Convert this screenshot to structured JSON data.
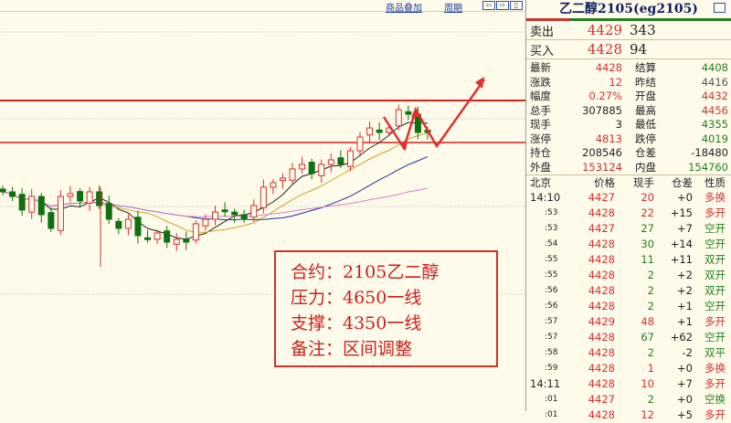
{
  "toolbar": {
    "add_product": "商品叠加",
    "period": "周期",
    "nav_left": "⇦",
    "nav_right": "⇨",
    "nav_split": "▯"
  },
  "chart": {
    "pressure_level": 4650,
    "support_level": 4350,
    "up_color": "#d03030",
    "down_color": "#107010",
    "ma_colors": [
      "#202020",
      "#d0a020",
      "#2030a0",
      "#d080d0"
    ],
    "closes": [
      3998,
      3965,
      3868,
      3965,
      3835,
      3737,
      3965,
      3985,
      3933,
      3998,
      3900,
      3802,
      3737,
      3802,
      3685,
      3659,
      3704,
      3639,
      3659,
      3639,
      3770,
      3802,
      3854,
      3868,
      3835,
      3802,
      3900,
      4031,
      4063,
      4096,
      4161,
      4194,
      4128,
      4194,
      4226,
      4194,
      4291,
      4389,
      4454,
      4422,
      4454,
      4585,
      4552,
      4422,
      4428
    ]
  },
  "note": {
    "lines": [
      "合约：2105乙二醇",
      "压力：4650一线",
      "支撑：4350一线",
      "备注：区间调整"
    ]
  },
  "panel": {
    "title": "乙二醇2105(eg2105)",
    "sell": {
      "label": "卖出",
      "price": "4429",
      "volume": "343"
    },
    "buy": {
      "label": "买入",
      "price": "4428",
      "volume": "94"
    },
    "stats": [
      {
        "k": "最新",
        "a": "4428",
        "ac": "red",
        "k2": "结算",
        "b": "4408",
        "bc": "green"
      },
      {
        "k": "涨跌",
        "a": "12",
        "ac": "red",
        "k2": "昨结",
        "b": "4416",
        "bc": "gray"
      },
      {
        "k": "幅度",
        "a": "0.27%",
        "ac": "red",
        "k2": "开盘",
        "b": "4432",
        "bc": "red"
      },
      {
        "k": "总手",
        "a": "307885",
        "ac": "blk",
        "k2": "最高",
        "b": "4456",
        "bc": "red"
      },
      {
        "k": "现手",
        "a": "3",
        "ac": "blk",
        "k2": "最低",
        "b": "4355",
        "bc": "green"
      },
      {
        "k": "涨停",
        "a": "4813",
        "ac": "red",
        "k2": "跌停",
        "b": "4019",
        "bc": "green"
      },
      {
        "k": "持仓",
        "a": "208546",
        "ac": "blk",
        "k2": "仓差",
        "b": "-18480",
        "bc": "blk"
      },
      {
        "k": "外盘",
        "a": "153124",
        "ac": "red",
        "k2": "内盘",
        "b": "154760",
        "bc": "green"
      }
    ],
    "ticks_header": [
      "北京",
      "价格",
      "现手",
      "仓差",
      "性质"
    ],
    "ticks": [
      {
        "t": "14:10",
        "p": "4427",
        "v": "20",
        "vc": "red",
        "d": "+0",
        "n": "多换",
        "nc": "red"
      },
      {
        "t": ":53",
        "p": "4428",
        "v": "22",
        "vc": "red",
        "d": "+15",
        "n": "多开",
        "nc": "red"
      },
      {
        "t": ":53",
        "p": "4427",
        "v": "27",
        "vc": "green",
        "d": "+7",
        "n": "空开",
        "nc": "green"
      },
      {
        "t": ":54",
        "p": "4428",
        "v": "30",
        "vc": "green",
        "d": "+14",
        "n": "空开",
        "nc": "green"
      },
      {
        "t": ":55",
        "p": "4428",
        "v": "11",
        "vc": "green",
        "d": "+11",
        "n": "双开",
        "nc": "green"
      },
      {
        "t": ":55",
        "p": "4428",
        "v": "2",
        "vc": "green",
        "d": "+2",
        "n": "双开",
        "nc": "green"
      },
      {
        "t": ":56",
        "p": "4428",
        "v": "2",
        "vc": "green",
        "d": "+2",
        "n": "双开",
        "nc": "green"
      },
      {
        "t": ":56",
        "p": "4428",
        "v": "2",
        "vc": "green",
        "d": "+1",
        "n": "空开",
        "nc": "green"
      },
      {
        "t": ":57",
        "p": "4429",
        "v": "48",
        "vc": "red",
        "d": "+1",
        "n": "多开",
        "nc": "red"
      },
      {
        "t": ":57",
        "p": "4428",
        "v": "67",
        "vc": "green",
        "d": "+62",
        "n": "空开",
        "nc": "green"
      },
      {
        "t": ":58",
        "p": "4428",
        "v": "2",
        "vc": "green",
        "d": "-2",
        "n": "双平",
        "nc": "green"
      },
      {
        "t": ":59",
        "p": "4428",
        "v": "1",
        "vc": "red",
        "d": "+0",
        "n": "多换",
        "nc": "red"
      },
      {
        "t": "14:11",
        "p": "4428",
        "v": "10",
        "vc": "red",
        "d": "+7",
        "n": "多开",
        "nc": "red"
      },
      {
        "t": ":01",
        "p": "4427",
        "v": "2",
        "vc": "green",
        "d": "+0",
        "n": "空换",
        "nc": "green"
      },
      {
        "t": ":01",
        "p": "4428",
        "v": "12",
        "vc": "red",
        "d": "+5",
        "n": "多开",
        "nc": "red"
      }
    ]
  }
}
